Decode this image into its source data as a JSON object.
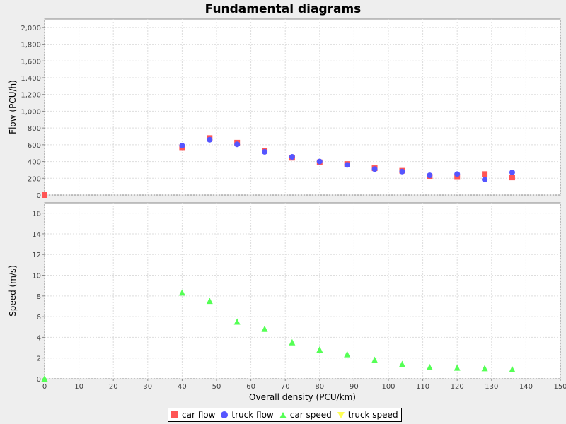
{
  "title": "Fundamental diagrams",
  "chart_data": {
    "type": "scatter",
    "xlabel": "Overall density (PCU/km)",
    "xlim": [
      0,
      150
    ],
    "x_ticks": [
      "0",
      "10",
      "20",
      "30",
      "40",
      "50",
      "60",
      "70",
      "80",
      "90",
      "100",
      "110",
      "120",
      "130",
      "140",
      "150"
    ],
    "grid": true,
    "legend_placement": "bottom",
    "panels": [
      {
        "ylabel": "Flow (PCU/h)",
        "ylim": [
          0,
          2100
        ],
        "y_ticks": [
          "0",
          "200",
          "400",
          "600",
          "800",
          "1,000",
          "1,200",
          "1,400",
          "1,600",
          "1,800",
          "2,000"
        ],
        "series": [
          {
            "name": "car flow",
            "marker": "square",
            "color": "#ff5555",
            "points": [
              [
                0,
                0
              ],
              [
                40,
                570
              ],
              [
                48,
                680
              ],
              [
                56,
                625
              ],
              [
                64,
                530
              ],
              [
                72,
                445
              ],
              [
                80,
                390
              ],
              [
                88,
                370
              ],
              [
                96,
                320
              ],
              [
                104,
                290
              ],
              [
                112,
                220
              ],
              [
                120,
                215
              ],
              [
                128,
                250
              ],
              [
                136,
                210
              ]
            ]
          },
          {
            "name": "truck flow",
            "marker": "circle",
            "color": "#5555ff",
            "points": [
              [
                40,
                590
              ],
              [
                48,
                660
              ],
              [
                56,
                605
              ],
              [
                64,
                515
              ],
              [
                72,
                455
              ],
              [
                80,
                400
              ],
              [
                88,
                360
              ],
              [
                96,
                310
              ],
              [
                104,
                280
              ],
              [
                112,
                235
              ],
              [
                120,
                250
              ],
              [
                128,
                185
              ],
              [
                136,
                270
              ]
            ]
          }
        ]
      },
      {
        "ylabel": "Speed (m/s)",
        "ylim": [
          0,
          17
        ],
        "y_ticks": [
          "0",
          "2",
          "4",
          "6",
          "8",
          "10",
          "12",
          "14",
          "16"
        ],
        "series": [
          {
            "name": "car speed",
            "marker": "triangle-up",
            "color": "#55ff55",
            "points": [
              [
                0,
                0
              ],
              [
                40,
                8.3
              ],
              [
                48,
                7.5
              ],
              [
                56,
                5.5
              ],
              [
                64,
                4.8
              ],
              [
                72,
                3.5
              ],
              [
                80,
                2.8
              ],
              [
                88,
                2.35
              ],
              [
                96,
                1.8
              ],
              [
                104,
                1.4
              ],
              [
                112,
                1.1
              ],
              [
                120,
                1.05
              ],
              [
                128,
                1.0
              ],
              [
                136,
                0.9
              ]
            ]
          },
          {
            "name": "truck speed",
            "marker": "triangle-down",
            "color": "#ffff55",
            "points": []
          }
        ]
      }
    ]
  }
}
